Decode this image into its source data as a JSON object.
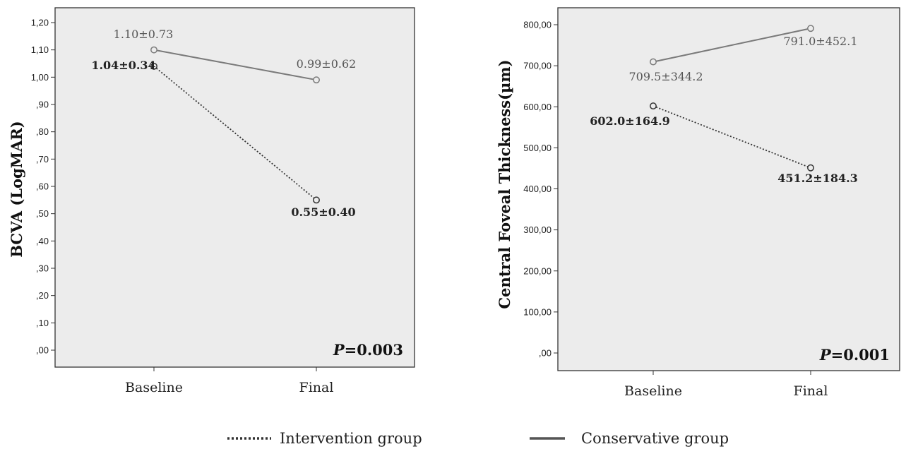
{
  "chart_data": [
    {
      "type": "line",
      "ylabel": "BCVA (LogMAR)",
      "categories": [
        "Baseline",
        "Final"
      ],
      "ylim": [
        0,
        1.2
      ],
      "yticks": [
        ",00",
        ",10",
        ",20",
        ",30",
        ",40",
        ",50",
        ",60",
        ",70",
        ",80",
        ",90",
        "1,00",
        "1,10",
        "1,20"
      ],
      "ytick_values": [
        0,
        0.1,
        0.2,
        0.3,
        0.4,
        0.5,
        0.6,
        0.7,
        0.8,
        0.9,
        1.0,
        1.1,
        1.2
      ],
      "series": [
        {
          "name": "Intervention group",
          "values": [
            1.04,
            0.55
          ],
          "labels": [
            "1.04±0.34",
            "0.55±0.40"
          ],
          "style": "dotted",
          "color": "#333333"
        },
        {
          "name": "Conservative group",
          "values": [
            1.1,
            0.99
          ],
          "labels": [
            "1.10±0.73",
            "0.99±0.62"
          ],
          "style": "solid",
          "color": "#7a7a7a"
        }
      ],
      "p_prefix": "P",
      "p_suffix": "=0.003",
      "grid": false
    },
    {
      "type": "line",
      "ylabel": "Central Foveal Thickness(µm)",
      "categories": [
        "Baseline",
        "Final"
      ],
      "ylim": [
        0,
        800
      ],
      "yticks": [
        ",00",
        "100,00",
        "200,00",
        "300,00",
        "400,00",
        "500,00",
        "600,00",
        "700,00",
        "800,00"
      ],
      "ytick_values": [
        0,
        100,
        200,
        300,
        400,
        500,
        600,
        700,
        800
      ],
      "series": [
        {
          "name": "Intervention group",
          "values": [
            602.0,
            451.2
          ],
          "labels": [
            "602.0±164.9",
            "451.2±184.3"
          ],
          "style": "dotted",
          "color": "#333333"
        },
        {
          "name": "Conservative group",
          "values": [
            709.5,
            791.0
          ],
          "labels": [
            "709.5±344.2",
            "791.0±452.1"
          ],
          "style": "solid",
          "color": "#7a7a7a"
        }
      ],
      "p_prefix": "P",
      "p_suffix": "=0.001",
      "grid": false
    }
  ],
  "legend": [
    {
      "label": "Intervention group",
      "style": "dotted"
    },
    {
      "label": "Conservative group",
      "style": "solid"
    }
  ],
  "colors": {
    "plot_background": "#ececec",
    "axis": "#333333"
  }
}
